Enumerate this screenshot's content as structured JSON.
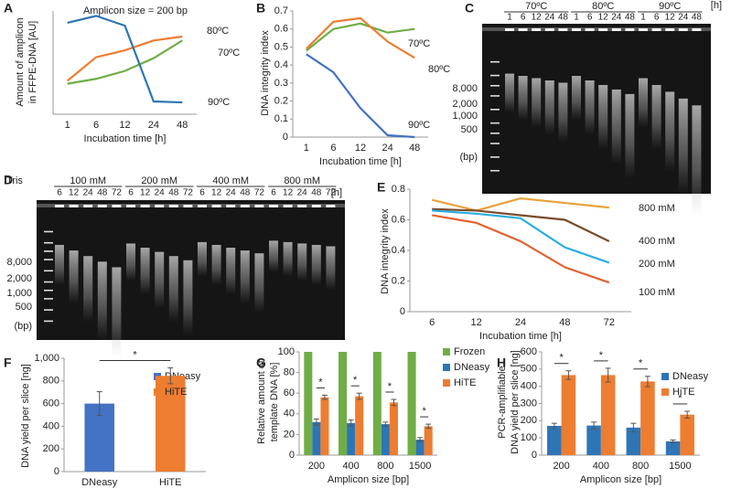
{
  "chart_data": [
    {
      "panel": "A",
      "type": "line",
      "annotation": "Amplicon size = 200 bp",
      "xlabel": "Incubation time [h]",
      "ylabel": [
        "Amount of amplicon",
        "in FFPE-DNA [AU]"
      ],
      "categories": [
        1,
        6,
        12,
        24,
        48
      ],
      "ylim": [
        0,
        1.05
      ],
      "series": [
        {
          "name": "80ºC",
          "color": "#ed7d31",
          "values": [
            0.34,
            0.58,
            0.65,
            0.75,
            0.79
          ]
        },
        {
          "name": "70ºC",
          "color": "#70ad47",
          "values": [
            0.31,
            0.36,
            0.44,
            0.57,
            0.75
          ]
        },
        {
          "name": "90ºC",
          "color": "#2e75b6",
          "values": [
            0.93,
            1.0,
            0.9,
            0.13,
            0.12
          ]
        }
      ]
    },
    {
      "panel": "B",
      "type": "line",
      "xlabel": "Incubation time [h]",
      "ylabel": [
        "DNA integrity index"
      ],
      "categories": [
        1,
        6,
        12,
        24,
        48
      ],
      "ylim": [
        0,
        0.7
      ],
      "yticks": [
        0,
        0.1,
        0.2,
        0.3,
        0.4,
        0.5,
        0.6,
        0.7
      ],
      "series": [
        {
          "name": "70ºC",
          "color": "#70ad47",
          "values": [
            0.48,
            0.6,
            0.63,
            0.58,
            0.6
          ]
        },
        {
          "name": "80ºC",
          "color": "#ed7d31",
          "values": [
            0.49,
            0.64,
            0.66,
            0.53,
            0.44
          ]
        },
        {
          "name": "90ºC",
          "color": "#4472c4",
          "values": [
            0.46,
            0.36,
            0.16,
            0.01,
            0.0
          ]
        }
      ]
    },
    {
      "panel": "E",
      "type": "line",
      "xlabel": "Incubation time [h]",
      "ylabel": [
        "DNA integrity index"
      ],
      "categories": [
        6,
        12,
        24,
        48,
        72
      ],
      "ylim": [
        0,
        0.8
      ],
      "yticks": [
        0,
        0.2,
        0.4,
        0.6,
        0.8
      ],
      "series": [
        {
          "name": "800 mM",
          "color": "#e8a33c",
          "values": [
            0.73,
            0.66,
            0.74,
            0.71,
            0.68
          ]
        },
        {
          "name": "400 mM",
          "color": "#7a4b2c",
          "values": [
            0.67,
            0.66,
            0.63,
            0.6,
            0.46
          ]
        },
        {
          "name": "200 mM",
          "color": "#2aaee0",
          "values": [
            0.66,
            0.64,
            0.61,
            0.42,
            0.32
          ]
        },
        {
          "name": "100 mM",
          "color": "#e2612e",
          "values": [
            0.63,
            0.58,
            0.46,
            0.29,
            0.19
          ]
        }
      ]
    },
    {
      "panel": "F",
      "type": "bar",
      "ylabel": [
        "DNA yield per slice [ng]"
      ],
      "categories": [
        "DNeasy",
        "HiTE"
      ],
      "values": [
        600,
        845
      ],
      "errors": [
        105,
        70
      ],
      "colors": [
        "#4472c4",
        "#ed7d31"
      ],
      "significance": [
        "*"
      ],
      "ylim": [
        0,
        1000
      ],
      "yticks": [
        0,
        200,
        400,
        600,
        800,
        {
          "value": 1000,
          "label": "1,000"
        }
      ]
    },
    {
      "panel": "G",
      "type": "bar",
      "xlabel": "Amplicon size [bp]",
      "ylabel": [
        "Relative amount of",
        "template DNA [%]"
      ],
      "categories": [
        200,
        400,
        800,
        1500
      ],
      "ylim": [
        0,
        100
      ],
      "yticks": [
        0,
        20,
        40,
        60,
        80,
        100
      ],
      "significance": [
        "*",
        "*",
        "*",
        "*"
      ],
      "series": [
        {
          "name": "Frozen",
          "color": "#70ad47",
          "values": [
            100,
            100,
            100,
            100
          ]
        },
        {
          "name": "DNeasy",
          "color": "#2e75b6",
          "values": [
            32,
            31,
            30,
            15
          ],
          "errors": [
            3,
            3,
            2,
            2
          ]
        },
        {
          "name": "HiTE",
          "color": "#ed7d31",
          "values": [
            56,
            57,
            51,
            28
          ],
          "errors": [
            2,
            3,
            3,
            2
          ]
        }
      ]
    },
    {
      "panel": "H",
      "type": "bar",
      "xlabel": "Amplicon size [bp]",
      "ylabel": [
        "PCR-amplifiable",
        "DNA yield per slice [ng]"
      ],
      "categories": [
        200,
        400,
        800,
        1500
      ],
      "ylim": [
        0,
        600
      ],
      "yticks": [
        0,
        100,
        200,
        300,
        400,
        500,
        600
      ],
      "significance": [
        "*",
        "*",
        "*",
        "*"
      ],
      "series": [
        {
          "name": "DNeasy",
          "color": "#2e75b6",
          "values": [
            170,
            172,
            160,
            80
          ],
          "errors": [
            15,
            20,
            25,
            8
          ]
        },
        {
          "name": "HiTE",
          "color": "#ed7d31",
          "values": [
            465,
            465,
            428,
            235
          ],
          "errors": [
            25,
            40,
            30,
            20
          ]
        }
      ]
    }
  ],
  "gels": [
    {
      "panel": "C",
      "groups": [
        "70ºC",
        "80ºC",
        "90ºC"
      ],
      "lanes": [
        1,
        6,
        12,
        24,
        48
      ],
      "unit": "[h]",
      "ladder": [
        "8,000",
        "2,000",
        "1,000",
        "500"
      ],
      "ladder_unit": "(bp)"
    },
    {
      "panel": "D",
      "prefix": "Tris",
      "groups": [
        "100 mM",
        "200 mM",
        "400 mM",
        "800 mM"
      ],
      "lanes": [
        6,
        12,
        24,
        48,
        72
      ],
      "unit": "[h]",
      "ladder": [
        "8,000",
        "2,000",
        "1,000",
        "500"
      ],
      "ladder_unit": "(bp)"
    }
  ]
}
